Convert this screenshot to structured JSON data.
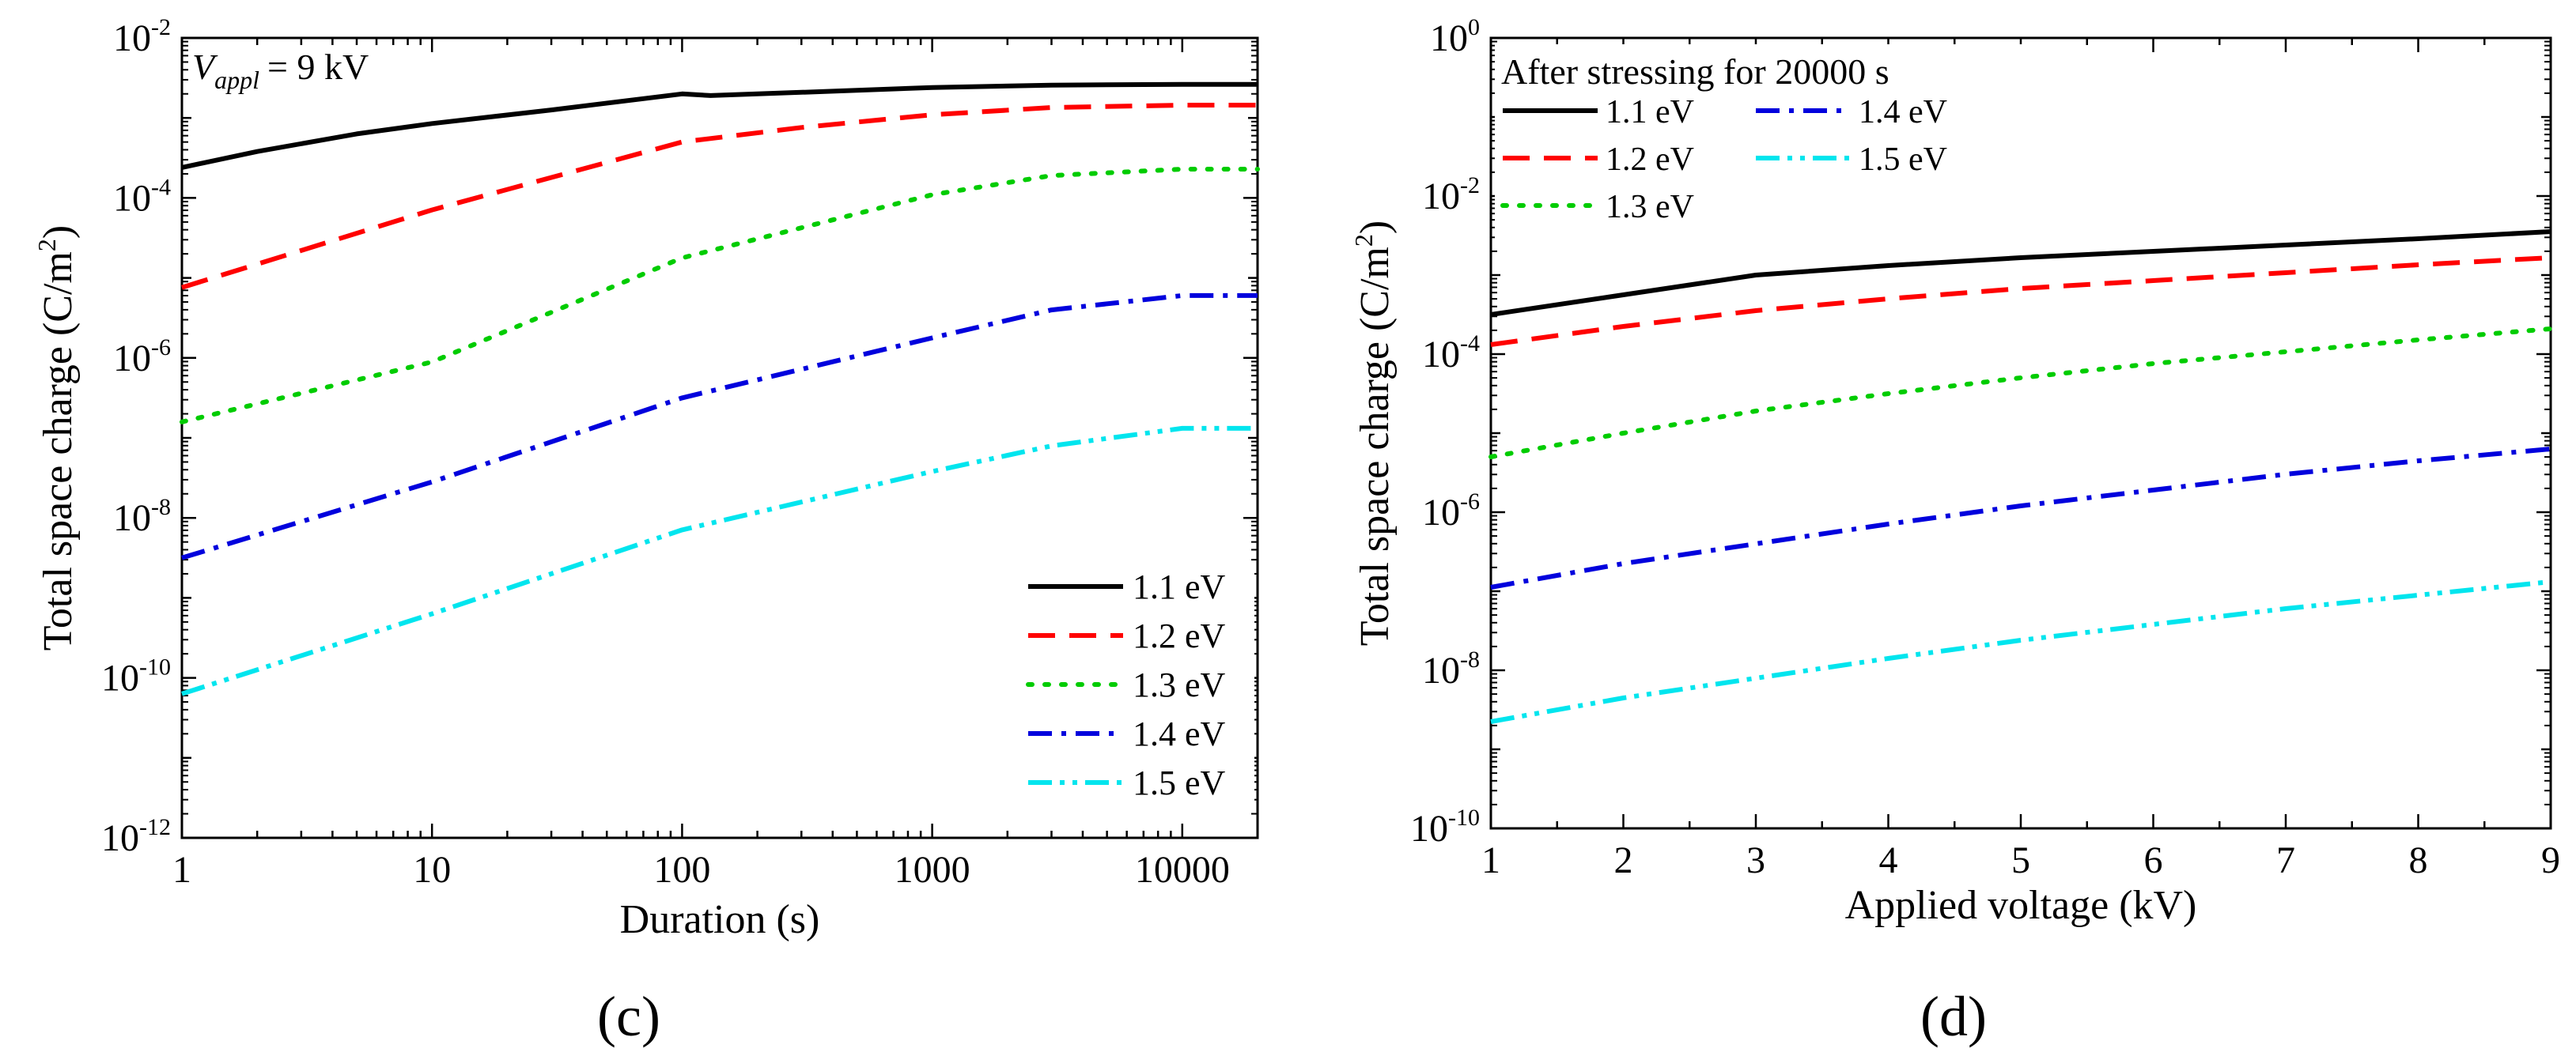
{
  "chart_data": [
    {
      "type": "line",
      "panel_label": "(c)",
      "annotation": {
        "symbol": "V",
        "subscript": "appl",
        "value": "= 9 kV"
      },
      "xlabel": "Duration (s)",
      "ylabel": "Total space charge  (C/m²)",
      "ylabel_parts": {
        "pre": "Total space charge  (C/m",
        "sup": "2",
        "post": ")"
      },
      "xscale": "log",
      "yscale": "log",
      "xlim": [
        1,
        20000
      ],
      "ylim_exp": [
        -12,
        -2
      ],
      "x_ticks": [
        {
          "v": 1,
          "label": "1"
        },
        {
          "v": 10,
          "label": "10"
        },
        {
          "v": 100,
          "label": "100"
        },
        {
          "v": 1000,
          "label": "1000"
        },
        {
          "v": 10000,
          "label": "10000"
        }
      ],
      "y_ticks": [
        {
          "exp": -2,
          "label": "-2"
        },
        {
          "exp": -4,
          "label": "-4"
        },
        {
          "exp": -6,
          "label": "-6"
        },
        {
          "exp": -8,
          "label": "-8"
        },
        {
          "exp": -10,
          "label": "-10"
        },
        {
          "exp": -12,
          "label": "-12"
        }
      ],
      "legend_position": "bottom-right",
      "series": [
        {
          "name": "1.1 eV",
          "color": "#000000",
          "style": "solid",
          "x": [
            1,
            2,
            5,
            10,
            30,
            100,
            130,
            300,
            1000,
            3000,
            10000,
            20000
          ],
          "y_exp": [
            -3.62,
            -3.42,
            -3.2,
            -3.07,
            -2.9,
            -2.7,
            -2.72,
            -2.68,
            -2.62,
            -2.59,
            -2.58,
            -2.58
          ]
        },
        {
          "name": "1.2 eV",
          "color": "#ff0000",
          "style": "dashed",
          "x": [
            1,
            10,
            100,
            300,
            1000,
            3000,
            10000,
            20000
          ],
          "y_exp": [
            -5.12,
            -4.15,
            -3.3,
            -3.12,
            -2.96,
            -2.87,
            -2.84,
            -2.84
          ]
        },
        {
          "name": "1.3 eV",
          "color": "#00cc00",
          "style": "dotted",
          "x": [
            1,
            10,
            100,
            1000,
            3000,
            10000,
            20000
          ],
          "y_exp": [
            -6.8,
            -6.05,
            -4.75,
            -3.96,
            -3.72,
            -3.64,
            -3.64
          ]
        },
        {
          "name": "1.4 eV",
          "color": "#0000dd",
          "style": "dashdot",
          "x": [
            1,
            10,
            100,
            1000,
            3000,
            10000,
            20000
          ],
          "y_exp": [
            -8.5,
            -7.55,
            -6.5,
            -5.75,
            -5.4,
            -5.22,
            -5.22
          ]
        },
        {
          "name": "1.5 eV",
          "color": "#00e5ee",
          "style": "dashdotdot",
          "x": [
            1,
            10,
            100,
            1000,
            3000,
            10000,
            20000
          ],
          "y_exp": [
            -10.2,
            -9.2,
            -8.15,
            -7.42,
            -7.1,
            -6.88,
            -6.88
          ]
        }
      ]
    },
    {
      "type": "line",
      "panel_label": "(d)",
      "title": "After stressing for 20000 s",
      "xlabel": "Applied voltage (kV)",
      "ylabel": "Total space charge (C/m²)",
      "ylabel_parts": {
        "pre": "Total space charge (C/m",
        "sup": "2",
        "post": ")"
      },
      "xscale": "linear",
      "yscale": "log",
      "xlim": [
        1,
        9
      ],
      "ylim_exp": [
        -10,
        0
      ],
      "x_ticks": [
        {
          "v": 1,
          "label": "1"
        },
        {
          "v": 2,
          "label": "2"
        },
        {
          "v": 3,
          "label": "3"
        },
        {
          "v": 4,
          "label": "4"
        },
        {
          "v": 5,
          "label": "5"
        },
        {
          "v": 6,
          "label": "6"
        },
        {
          "v": 7,
          "label": "7"
        },
        {
          "v": 8,
          "label": "8"
        },
        {
          "v": 9,
          "label": "9"
        }
      ],
      "y_ticks": [
        {
          "exp": 0,
          "label": "0"
        },
        {
          "exp": -2,
          "label": "-2"
        },
        {
          "exp": -4,
          "label": "-4"
        },
        {
          "exp": -6,
          "label": "-6"
        },
        {
          "exp": -8,
          "label": "-8"
        },
        {
          "exp": -10,
          "label": "-10"
        }
      ],
      "legend_position": "top-left",
      "series": [
        {
          "name": "1.1 eV",
          "color": "#000000",
          "style": "solid",
          "x": [
            1,
            2,
            3,
            4,
            5,
            6,
            7,
            8,
            9
          ],
          "y_exp": [
            -3.5,
            -3.25,
            -3.0,
            -2.88,
            -2.78,
            -2.7,
            -2.62,
            -2.54,
            -2.45
          ]
        },
        {
          "name": "1.2 eV",
          "color": "#ff0000",
          "style": "dashed",
          "x": [
            1,
            2,
            3,
            4,
            5,
            6,
            7,
            8,
            9
          ],
          "y_exp": [
            -3.88,
            -3.65,
            -3.45,
            -3.3,
            -3.17,
            -3.07,
            -2.97,
            -2.87,
            -2.78
          ]
        },
        {
          "name": "1.3 eV",
          "color": "#00cc00",
          "style": "dotted",
          "x": [
            1,
            2,
            3,
            4,
            5,
            6,
            7,
            8,
            9
          ],
          "y_exp": [
            -5.3,
            -5.0,
            -4.72,
            -4.5,
            -4.3,
            -4.12,
            -3.97,
            -3.82,
            -3.68
          ]
        },
        {
          "name": "1.4 eV",
          "color": "#0000dd",
          "style": "dashdot",
          "x": [
            1,
            2,
            3,
            4,
            5,
            6,
            7,
            8,
            9
          ],
          "y_exp": [
            -6.95,
            -6.65,
            -6.4,
            -6.15,
            -5.92,
            -5.72,
            -5.52,
            -5.35,
            -5.2
          ]
        },
        {
          "name": "1.5 eV",
          "color": "#00e5ee",
          "style": "dashdotdot",
          "x": [
            1,
            2,
            3,
            4,
            5,
            6,
            7,
            8,
            9
          ],
          "y_exp": [
            -8.65,
            -8.35,
            -8.1,
            -7.85,
            -7.62,
            -7.42,
            -7.22,
            -7.05,
            -6.88
          ]
        }
      ]
    }
  ]
}
